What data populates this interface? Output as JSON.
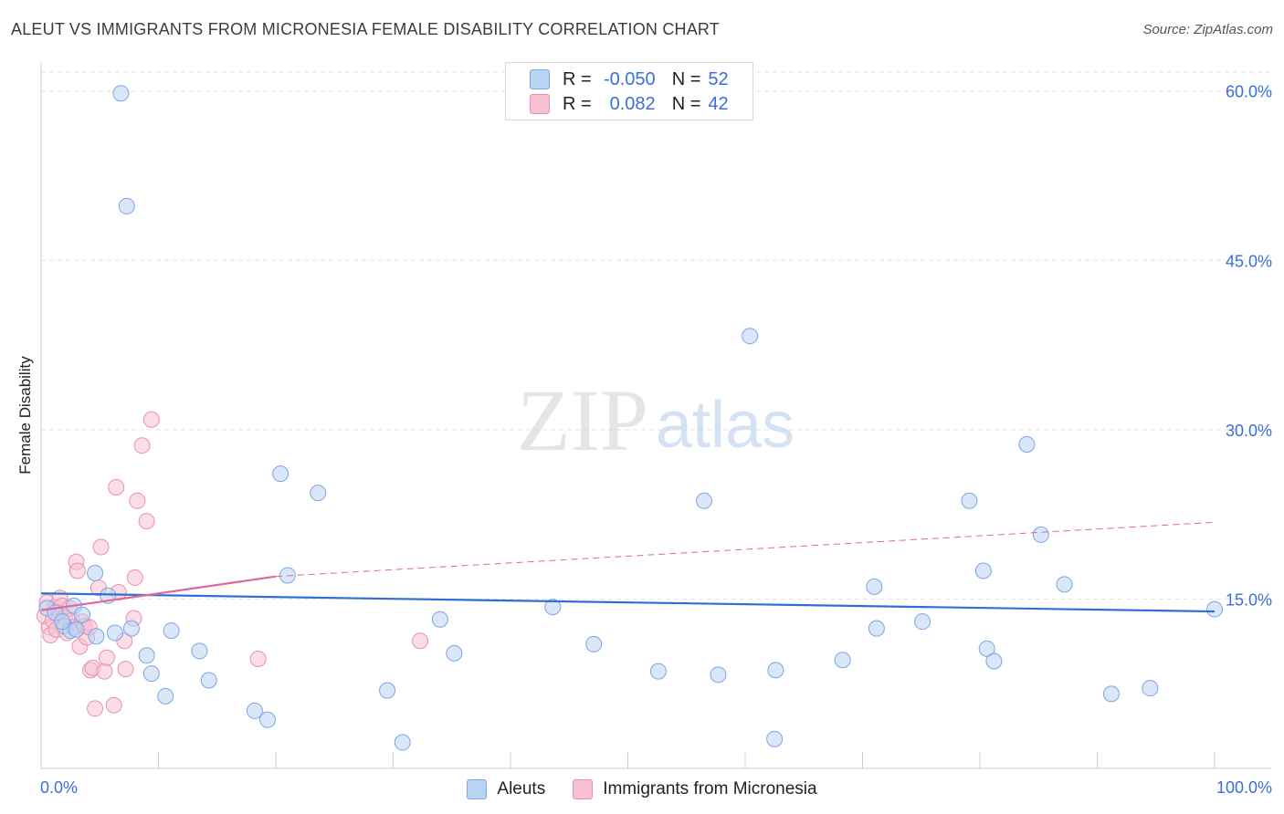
{
  "title": "ALEUT VS IMMIGRANTS FROM MICRONESIA FEMALE DISABILITY CORRELATION CHART",
  "source": "Source: ZipAtlas.com",
  "watermark": {
    "zip": "ZIP",
    "atlas": "atlas"
  },
  "legend_top": [
    {
      "r_label": "R =",
      "r_value": "-0.050",
      "n_label": "N =",
      "n_value": "52"
    },
    {
      "r_label": "R =",
      "r_value": "0.082",
      "n_label": "N =",
      "n_value": "42"
    }
  ],
  "colors": {
    "blue_fill": "#b9d3f3",
    "blue_stroke": "#7aa6e6",
    "blue_line": "#2f6fd4",
    "pink_fill": "#f7c1d3",
    "pink_stroke": "#eb8fb0",
    "pink_line": "#e0679a",
    "tick_label": "#3a6fd8"
  },
  "chart_data": {
    "type": "scatter",
    "title": "ALEUT VS IMMIGRANTS FROM MICRONESIA FEMALE DISABILITY CORRELATION CHART",
    "xlabel": "",
    "ylabel": "Female Disability",
    "xlim": [
      0,
      100
    ],
    "ylim": [
      0,
      62
    ],
    "x_tick_labels": [
      "0.0%",
      "100.0%"
    ],
    "y_ticks": [
      15,
      30,
      45,
      60
    ],
    "y_tick_labels": [
      "15.0%",
      "30.0%",
      "45.0%",
      "60.0%"
    ],
    "legend": [
      "Aleuts",
      "Immigrants from Micronesia"
    ],
    "series": [
      {
        "name": "Aleuts",
        "r": -0.05,
        "n": 52,
        "trend": {
          "x0": 0,
          "y0": 15.5,
          "x1": 100,
          "y1": 13.9
        },
        "points": [
          [
            6.8,
            59.8
          ],
          [
            7.3,
            49.8
          ],
          [
            0.5,
            14.2
          ],
          [
            2.0,
            12.6
          ],
          [
            2.8,
            14.4
          ],
          [
            2.5,
            12.2
          ],
          [
            3.5,
            13.6
          ],
          [
            4.7,
            11.7
          ],
          [
            4.6,
            17.3
          ],
          [
            5.7,
            15.3
          ],
          [
            6.3,
            12.0
          ],
          [
            7.7,
            12.4
          ],
          [
            9.0,
            10.0
          ],
          [
            9.4,
            8.4
          ],
          [
            10.6,
            6.4
          ],
          [
            11.1,
            12.2
          ],
          [
            13.5,
            10.4
          ],
          [
            14.3,
            7.8
          ],
          [
            18.2,
            5.1
          ],
          [
            19.3,
            4.3
          ],
          [
            20.4,
            26.1
          ],
          [
            21.0,
            17.1
          ],
          [
            23.6,
            24.4
          ],
          [
            29.5,
            6.9
          ],
          [
            30.8,
            2.3
          ],
          [
            34.0,
            13.2
          ],
          [
            35.2,
            10.2
          ],
          [
            43.6,
            14.3
          ],
          [
            47.1,
            11.0
          ],
          [
            52.6,
            8.6
          ],
          [
            56.5,
            23.7
          ],
          [
            57.7,
            8.3
          ],
          [
            60.4,
            38.3
          ],
          [
            62.6,
            8.7
          ],
          [
            68.3,
            9.6
          ],
          [
            71.0,
            16.1
          ],
          [
            71.2,
            12.4
          ],
          [
            75.1,
            13.0
          ],
          [
            79.1,
            23.7
          ],
          [
            80.3,
            17.5
          ],
          [
            80.6,
            10.6
          ],
          [
            81.2,
            9.5
          ],
          [
            84.0,
            28.7
          ],
          [
            85.2,
            20.7
          ],
          [
            87.2,
            16.3
          ],
          [
            91.2,
            6.6
          ],
          [
            94.5,
            7.1
          ],
          [
            100.0,
            14.1
          ],
          [
            62.5,
            2.6
          ],
          [
            1.2,
            13.8
          ],
          [
            3.0,
            12.3
          ],
          [
            1.8,
            13.0
          ]
        ]
      },
      {
        "name": "Immigrants from Micronesia",
        "r": 0.082,
        "n": 42,
        "trend": {
          "x0": 0,
          "y0": 14.0,
          "x1": 20,
          "y1": 17.0,
          "dash_to_x": 100,
          "dash_to_y": 21.8
        },
        "points": [
          [
            0.3,
            13.5
          ],
          [
            0.5,
            14.7
          ],
          [
            0.7,
            12.5
          ],
          [
            0.8,
            11.8
          ],
          [
            1.0,
            13.1
          ],
          [
            1.2,
            14.3
          ],
          [
            1.3,
            12.3
          ],
          [
            1.5,
            13.9
          ],
          [
            1.6,
            15.1
          ],
          [
            1.8,
            14.4
          ],
          [
            2.0,
            13.4
          ],
          [
            2.2,
            12.0
          ],
          [
            2.4,
            14.2
          ],
          [
            2.6,
            13.1
          ],
          [
            2.8,
            12.5
          ],
          [
            3.0,
            18.3
          ],
          [
            3.1,
            17.5
          ],
          [
            3.3,
            10.8
          ],
          [
            3.5,
            13.0
          ],
          [
            3.7,
            12.6
          ],
          [
            3.9,
            11.6
          ],
          [
            4.1,
            12.5
          ],
          [
            4.2,
            8.7
          ],
          [
            4.4,
            8.9
          ],
          [
            4.6,
            5.3
          ],
          [
            4.9,
            16.0
          ],
          [
            5.1,
            19.6
          ],
          [
            5.4,
            8.6
          ],
          [
            5.6,
            9.8
          ],
          [
            6.2,
            5.6
          ],
          [
            6.4,
            24.9
          ],
          [
            6.6,
            15.6
          ],
          [
            7.1,
            11.3
          ],
          [
            7.2,
            8.8
          ],
          [
            7.9,
            13.3
          ],
          [
            8.0,
            16.9
          ],
          [
            8.2,
            23.7
          ],
          [
            8.6,
            28.6
          ],
          [
            9.0,
            21.9
          ],
          [
            9.4,
            30.9
          ],
          [
            18.5,
            9.7
          ],
          [
            32.3,
            11.3
          ]
        ]
      }
    ]
  },
  "bottom_legend": [
    "Aleuts",
    "Immigrants from Micronesia"
  ]
}
